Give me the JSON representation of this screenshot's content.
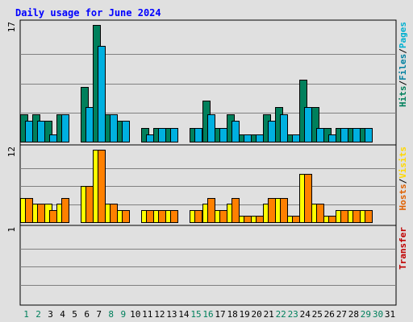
{
  "chart_data": {
    "type": "bar",
    "title": "Daily usage for June 2024",
    "categories": [
      "1",
      "2",
      "3",
      "4",
      "5",
      "6",
      "7",
      "8",
      "9",
      "10",
      "11",
      "12",
      "13",
      "14",
      "15",
      "16",
      "17",
      "18",
      "19",
      "20",
      "21",
      "22",
      "23",
      "24",
      "25",
      "26",
      "27",
      "28",
      "29",
      "30",
      "31"
    ],
    "weekend_days": [
      "1",
      "2",
      "8",
      "9",
      "15",
      "16",
      "22",
      "23",
      "29",
      "30"
    ],
    "panels": [
      {
        "id": "hfp",
        "ymax_label": "17",
        "ylim": [
          0,
          17
        ],
        "side_label_parts": [
          {
            "text": "Hits",
            "color": "#00805c"
          },
          {
            "text": "/",
            "color": "#000000"
          },
          {
            "text": "Files",
            "color": "#0080a0"
          },
          {
            "text": "/",
            "color": "#000000"
          },
          {
            "text": "Pages",
            "color": "#00b0d0"
          }
        ],
        "series": [
          {
            "name": "Hits",
            "color": "#00805c",
            "values": [
              4,
              4,
              3,
              4,
              0,
              8,
              17,
              4,
              3,
              0,
              2,
              2,
              2,
              0,
              2,
              6,
              2,
              4,
              1,
              1,
              4,
              5,
              1,
              9,
              5,
              2,
              2,
              2,
              2,
              0,
              0
            ]
          },
          {
            "name": "Files",
            "color": "#00b0e0",
            "values": [
              3,
              3,
              1,
              4,
              0,
              5,
              14,
              4,
              3,
              0,
              1,
              2,
              2,
              0,
              2,
              4,
              2,
              3,
              1,
              1,
              3,
              4,
              1,
              5,
              2,
              1,
              2,
              2,
              2,
              0,
              0
            ]
          },
          {
            "name": "Pages",
            "color": "#00e0ff",
            "values": [
              0,
              0,
              0,
              0,
              0,
              0,
              0,
              0,
              0,
              0,
              0,
              0,
              0,
              0,
              0,
              0,
              0,
              0,
              0,
              0,
              0,
              0,
              0,
              0,
              0,
              0,
              0,
              0,
              0,
              0,
              0
            ]
          }
        ]
      },
      {
        "id": "hv",
        "ymax_label": "12",
        "ylim": [
          0,
          12
        ],
        "side_label_parts": [
          {
            "text": "Hosts",
            "color": "#e06000"
          },
          {
            "text": "/",
            "color": "#000000"
          },
          {
            "text": "Visits",
            "color": "#ffd800"
          }
        ],
        "series": [
          {
            "name": "Visits",
            "color": "#ffff00",
            "values": [
              4,
              3,
              3,
              3,
              0,
              6,
              12,
              3,
              2,
              0,
              2,
              2,
              2,
              0,
              2,
              3,
              2,
              3,
              1,
              1,
              3,
              4,
              1,
              8,
              3,
              1,
              2,
              2,
              2,
              0,
              0
            ]
          },
          {
            "name": "Hosts",
            "color": "#ff8000",
            "values": [
              4,
              3,
              2,
              4,
              0,
              6,
              12,
              3,
              2,
              0,
              2,
              2,
              2,
              0,
              2,
              4,
              2,
              4,
              1,
              1,
              4,
              4,
              1,
              8,
              3,
              1,
              2,
              2,
              2,
              0,
              0
            ]
          }
        ]
      },
      {
        "id": "tr",
        "ymax_label": "1",
        "ylim": [
          0,
          1
        ],
        "side_label_parts": [
          {
            "text": "Transfer",
            "color": "#c00000"
          }
        ],
        "series": [
          {
            "name": "Transfer",
            "color": "#ff0000",
            "values": [
              0,
              0,
              0,
              0,
              0,
              0,
              0,
              0,
              0,
              0,
              0,
              0,
              0,
              0,
              0,
              0,
              0,
              0,
              0,
              0,
              0,
              0,
              0,
              0,
              0,
              0,
              0,
              0,
              0,
              0,
              0
            ]
          }
        ]
      }
    ],
    "colors": {
      "background": "#e0e0e0",
      "plot_background": "#e0e0e0",
      "title": "#0000ff",
      "weekday_label": "#000000",
      "weekend_label": "#00805c",
      "grid": "#808080"
    },
    "grid": true
  }
}
